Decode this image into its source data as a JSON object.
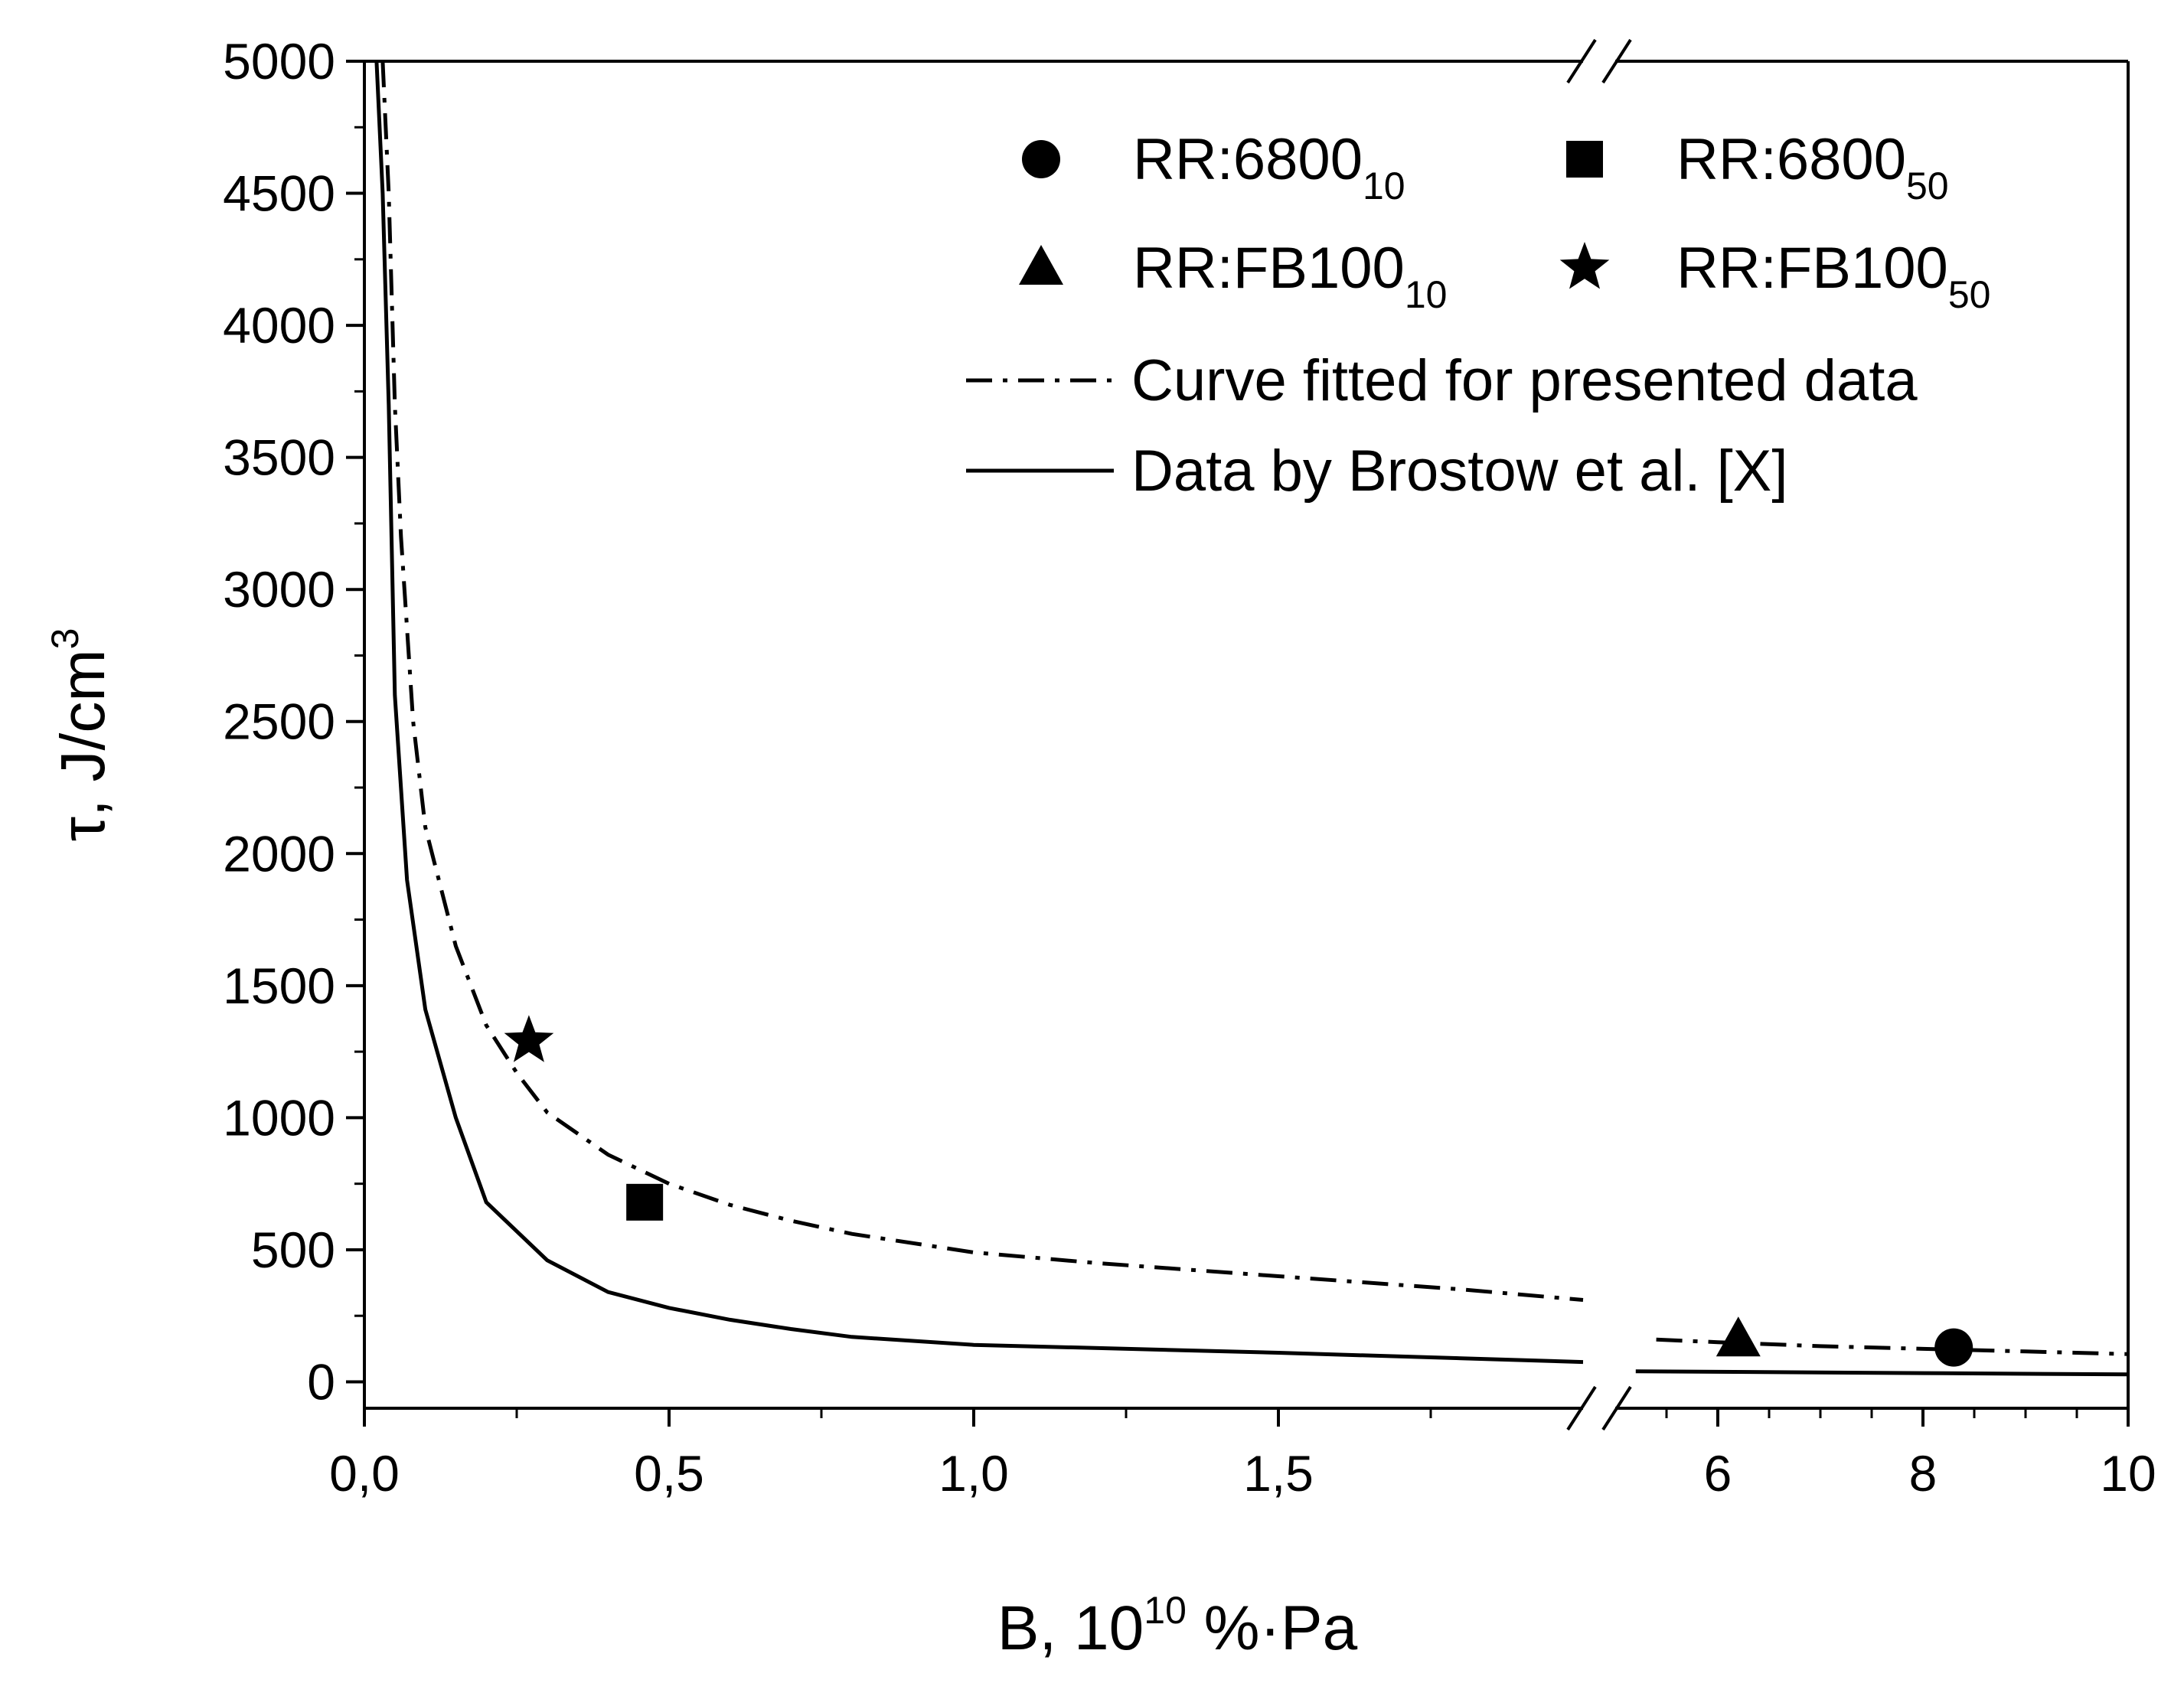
{
  "chart_data": {
    "type": "line",
    "xlabel_main": "B, 10",
    "xlabel_sup": "10",
    "xlabel_unit": " %·Pa",
    "ylabel_main": "τ, J/cm",
    "ylabel_sup": "3",
    "ylim": [
      -100,
      5000
    ],
    "y_ticks": [
      0,
      500,
      1000,
      1500,
      2000,
      2500,
      3000,
      3500,
      4000,
      4500,
      5000
    ],
    "y_tick_labels": [
      "0",
      "500",
      "1000",
      "1500",
      "2000",
      "2500",
      "3000",
      "3500",
      "4000",
      "4500",
      "5000"
    ],
    "x_segments": [
      {
        "range": [
          0,
          2.0
        ],
        "ticks": [
          0,
          0.5,
          1.0,
          1.5
        ],
        "tick_labels": [
          "0,0",
          "0,5",
          "1,0",
          "1,5"
        ],
        "minor_ticks": [
          0.25,
          0.75,
          1.25,
          1.75
        ]
      },
      {
        "range": [
          5.0,
          10.0
        ],
        "ticks": [
          6,
          8,
          10
        ],
        "tick_labels": [
          "6",
          "8",
          "10"
        ],
        "minor_ticks": [
          5.5,
          6.5,
          7,
          7.5,
          8.5,
          9,
          9.5
        ]
      }
    ],
    "axis_break": "x",
    "series": [
      {
        "name": "RR:6800",
        "subscript": "10",
        "marker": "circle",
        "points": [
          [
            8.3,
            130
          ]
        ]
      },
      {
        "name": "RR:6800",
        "subscript": "50",
        "marker": "square",
        "points": [
          [
            0.46,
            680
          ]
        ]
      },
      {
        "name": "RR:FB100",
        "subscript": "10",
        "marker": "triangle",
        "points": [
          [
            6.2,
            160
          ]
        ]
      },
      {
        "name": "RR:FB100",
        "subscript": "50",
        "marker": "star",
        "points": [
          [
            0.27,
            1290
          ]
        ]
      },
      {
        "name": "Curve fitted for presented data",
        "line": "dash-dot",
        "points": [
          [
            0.03,
            5000
          ],
          [
            0.04,
            4500
          ],
          [
            0.05,
            3700
          ],
          [
            0.06,
            3200
          ],
          [
            0.08,
            2500
          ],
          [
            0.1,
            2100
          ],
          [
            0.15,
            1650
          ],
          [
            0.2,
            1350
          ],
          [
            0.25,
            1170
          ],
          [
            0.3,
            1020
          ],
          [
            0.4,
            860
          ],
          [
            0.5,
            750
          ],
          [
            0.6,
            670
          ],
          [
            0.7,
            610
          ],
          [
            0.8,
            560
          ],
          [
            1.0,
            490
          ],
          [
            1.2,
            450
          ],
          [
            1.5,
            400
          ],
          [
            1.8,
            350
          ],
          [
            2.0,
            310
          ],
          [
            5.4,
            160
          ],
          [
            6.0,
            150
          ],
          [
            7.0,
            135
          ],
          [
            8.0,
            125
          ],
          [
            9.0,
            115
          ],
          [
            10.0,
            105
          ]
        ]
      },
      {
        "name": "Data by Brostow et al. [X]",
        "line": "solid",
        "points": [
          [
            0.02,
            5000
          ],
          [
            0.03,
            4500
          ],
          [
            0.04,
            3700
          ],
          [
            0.05,
            2600
          ],
          [
            0.07,
            1900
          ],
          [
            0.1,
            1410
          ],
          [
            0.15,
            1000
          ],
          [
            0.2,
            680
          ],
          [
            0.3,
            460
          ],
          [
            0.4,
            340
          ],
          [
            0.5,
            280
          ],
          [
            0.6,
            235
          ],
          [
            0.7,
            200
          ],
          [
            0.8,
            170
          ],
          [
            1.0,
            140
          ],
          [
            1.5,
            110
          ],
          [
            2.0,
            75
          ],
          [
            5.2,
            40
          ],
          [
            6.0,
            38
          ],
          [
            8.0,
            33
          ],
          [
            10.0,
            28
          ]
        ]
      }
    ],
    "legend_position": "top-right"
  }
}
